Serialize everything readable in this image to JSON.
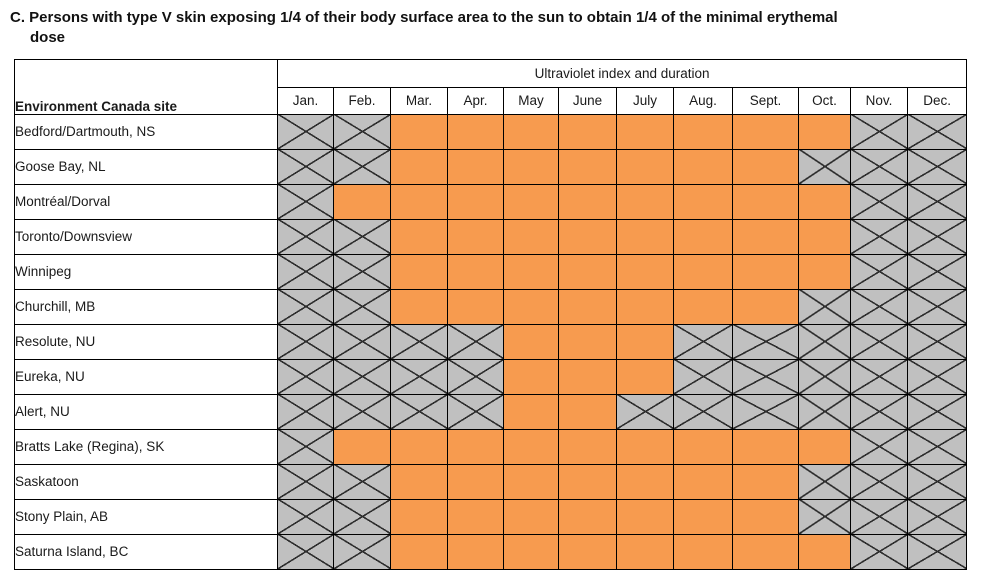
{
  "title": {
    "line1": "C. Persons with type V skin exposing 1/4 of their body surface area to the sun to obtain 1/4 of the minimal erythemal",
    "line2": "dose"
  },
  "table": {
    "site_column_header": "Environment Canada site",
    "months_group_header": "Ultraviolet index and duration",
    "months": [
      "Jan.",
      "Feb.",
      "Mar.",
      "Apr.",
      "May",
      "June",
      "July",
      "Aug.",
      "Sept.",
      "Oct.",
      "Nov.",
      "Dec."
    ],
    "cell_states_legend": {
      "uv": "orange filled cell (exposure period)",
      "na": "gray cell crossed out with X (not applicable)"
    },
    "colors": {
      "uv_fill": "#F79B4F",
      "na_fill": "#C0C0C0",
      "grid_line": "#000000",
      "cross_line": "#2E2E2E"
    },
    "rows": [
      {
        "site": "Bedford/Dartmouth, NS",
        "states": [
          "na",
          "na",
          "uv",
          "uv",
          "uv",
          "uv",
          "uv",
          "uv",
          "uv",
          "uv",
          "na",
          "na"
        ]
      },
      {
        "site": "Goose Bay, NL",
        "states": [
          "na",
          "na",
          "uv",
          "uv",
          "uv",
          "uv",
          "uv",
          "uv",
          "uv",
          "na",
          "na",
          "na"
        ]
      },
      {
        "site": "Montréal/Dorval",
        "states": [
          "na",
          "uv",
          "uv",
          "uv",
          "uv",
          "uv",
          "uv",
          "uv",
          "uv",
          "uv",
          "na",
          "na"
        ]
      },
      {
        "site": "Toronto/Downsview",
        "states": [
          "na",
          "na",
          "uv",
          "uv",
          "uv",
          "uv",
          "uv",
          "uv",
          "uv",
          "uv",
          "na",
          "na"
        ]
      },
      {
        "site": "Winnipeg",
        "states": [
          "na",
          "na",
          "uv",
          "uv",
          "uv",
          "uv",
          "uv",
          "uv",
          "uv",
          "uv",
          "na",
          "na"
        ]
      },
      {
        "site": "Churchill, MB",
        "states": [
          "na",
          "na",
          "uv",
          "uv",
          "uv",
          "uv",
          "uv",
          "uv",
          "uv",
          "na",
          "na",
          "na"
        ]
      },
      {
        "site": "Resolute, NU",
        "states": [
          "na",
          "na",
          "na",
          "na",
          "uv",
          "uv",
          "uv",
          "na",
          "na",
          "na",
          "na",
          "na"
        ]
      },
      {
        "site": "Eureka, NU",
        "states": [
          "na",
          "na",
          "na",
          "na",
          "uv",
          "uv",
          "uv",
          "na",
          "na",
          "na",
          "na",
          "na"
        ]
      },
      {
        "site": "Alert, NU",
        "states": [
          "na",
          "na",
          "na",
          "na",
          "uv",
          "uv",
          "na",
          "na",
          "na",
          "na",
          "na",
          "na"
        ]
      },
      {
        "site": "Bratts Lake (Regina), SK",
        "states": [
          "na",
          "uv",
          "uv",
          "uv",
          "uv",
          "uv",
          "uv",
          "uv",
          "uv",
          "uv",
          "na",
          "na"
        ]
      },
      {
        "site": "Saskatoon",
        "states": [
          "na",
          "na",
          "uv",
          "uv",
          "uv",
          "uv",
          "uv",
          "uv",
          "uv",
          "na",
          "na",
          "na"
        ]
      },
      {
        "site": "Stony Plain, AB",
        "states": [
          "na",
          "na",
          "uv",
          "uv",
          "uv",
          "uv",
          "uv",
          "uv",
          "uv",
          "na",
          "na",
          "na"
        ]
      },
      {
        "site": "Saturna Island, BC",
        "states": [
          "na",
          "na",
          "uv",
          "uv",
          "uv",
          "uv",
          "uv",
          "uv",
          "uv",
          "uv",
          "na",
          "na"
        ]
      }
    ]
  }
}
